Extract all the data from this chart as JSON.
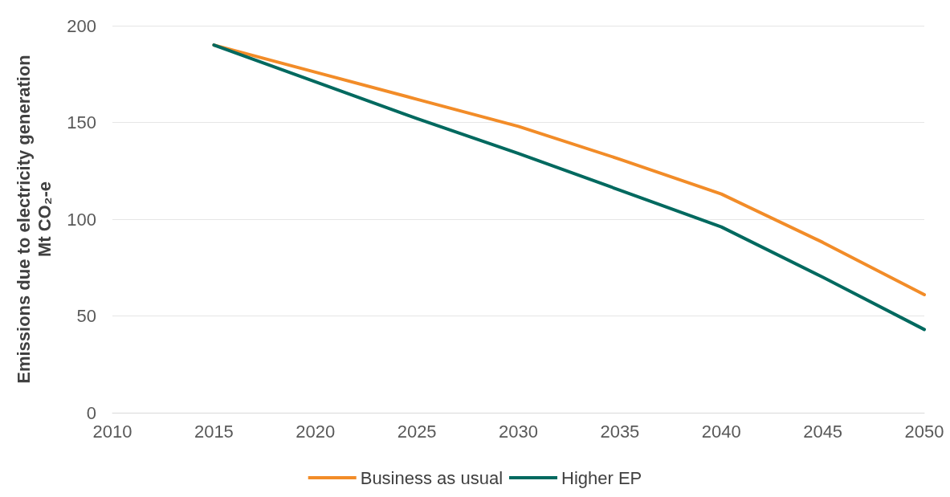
{
  "chart_data": {
    "type": "line",
    "ylabel": "Emissions due to electricity generation\nMt CO₂-e",
    "x": [
      2015,
      2020,
      2025,
      2030,
      2035,
      2040,
      2045,
      2050
    ],
    "series": [
      {
        "name": "Business as usual",
        "color": "#f28c28",
        "values": [
          190,
          176,
          162,
          148,
          131,
          113,
          88,
          61
        ]
      },
      {
        "name": "Higher EP",
        "color": "#00695f",
        "values": [
          190,
          171,
          152,
          134,
          115,
          96,
          70,
          43
        ]
      }
    ],
    "xlim": [
      2010,
      2050
    ],
    "xticks": [
      2010,
      2015,
      2020,
      2025,
      2030,
      2035,
      2040,
      2045,
      2050
    ],
    "ylim": [
      0,
      200
    ],
    "yticks": [
      0,
      50,
      100,
      150,
      200
    ],
    "grid": "y",
    "legend": "bottom",
    "marker": "none",
    "line_style": "solid"
  }
}
